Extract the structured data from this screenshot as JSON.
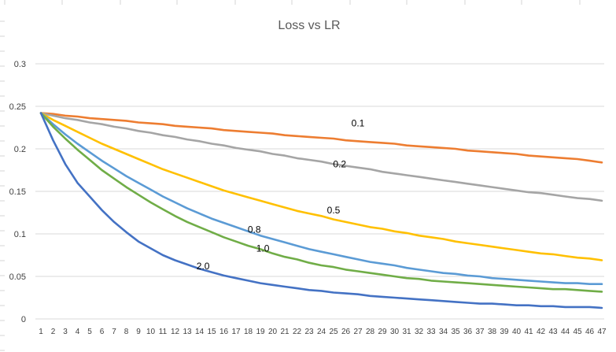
{
  "chart_data": {
    "type": "line",
    "title": "Loss vs LR",
    "xlabel": "",
    "ylabel": "",
    "ylim": [
      0,
      0.3
    ],
    "yticks": [
      "0",
      "0.05",
      "0.1",
      "0.15",
      "0.2",
      "0.25",
      "0.3"
    ],
    "grid": true,
    "legend": "none",
    "x": [
      1,
      2,
      3,
      4,
      5,
      6,
      7,
      8,
      9,
      10,
      11,
      12,
      13,
      14,
      15,
      16,
      17,
      18,
      19,
      20,
      21,
      22,
      23,
      24,
      25,
      26,
      27,
      28,
      29,
      30,
      31,
      32,
      33,
      34,
      35,
      36,
      37,
      38,
      39,
      40,
      41,
      42,
      43,
      44,
      45,
      46,
      47
    ],
    "series": [
      {
        "name": "0.1",
        "color": "#ED7D31",
        "values": [
          0.242,
          0.241,
          0.239,
          0.238,
          0.236,
          0.235,
          0.234,
          0.233,
          0.231,
          0.23,
          0.229,
          0.227,
          0.226,
          0.225,
          0.224,
          0.222,
          0.221,
          0.22,
          0.219,
          0.218,
          0.216,
          0.215,
          0.214,
          0.213,
          0.212,
          0.21,
          0.209,
          0.208,
          0.207,
          0.206,
          0.204,
          0.203,
          0.202,
          0.201,
          0.2,
          0.198,
          0.197,
          0.196,
          0.195,
          0.194,
          0.192,
          0.191,
          0.19,
          0.189,
          0.188,
          0.186,
          0.184
        ]
      },
      {
        "name": "0.2",
        "color": "#A5A5A5",
        "values": [
          0.242,
          0.239,
          0.236,
          0.234,
          0.231,
          0.229,
          0.226,
          0.224,
          0.221,
          0.219,
          0.216,
          0.214,
          0.211,
          0.209,
          0.206,
          0.204,
          0.201,
          0.199,
          0.197,
          0.194,
          0.192,
          0.189,
          0.187,
          0.185,
          0.182,
          0.18,
          0.178,
          0.176,
          0.173,
          0.171,
          0.169,
          0.167,
          0.165,
          0.163,
          0.161,
          0.159,
          0.157,
          0.155,
          0.153,
          0.151,
          0.149,
          0.148,
          0.146,
          0.144,
          0.142,
          0.141,
          0.139
        ]
      },
      {
        "name": "0.5",
        "color": "#FFC000",
        "values": [
          0.242,
          0.234,
          0.227,
          0.22,
          0.213,
          0.206,
          0.2,
          0.194,
          0.188,
          0.182,
          0.176,
          0.171,
          0.166,
          0.161,
          0.156,
          0.151,
          0.147,
          0.143,
          0.139,
          0.135,
          0.131,
          0.127,
          0.124,
          0.121,
          0.117,
          0.114,
          0.111,
          0.108,
          0.106,
          0.103,
          0.101,
          0.098,
          0.096,
          0.094,
          0.091,
          0.089,
          0.087,
          0.085,
          0.083,
          0.081,
          0.079,
          0.077,
          0.076,
          0.074,
          0.072,
          0.071,
          0.069
        ]
      },
      {
        "name": "0.8",
        "color": "#5B9BD5",
        "values": [
          0.242,
          0.229,
          0.217,
          0.206,
          0.196,
          0.186,
          0.177,
          0.168,
          0.16,
          0.152,
          0.144,
          0.137,
          0.13,
          0.124,
          0.118,
          0.113,
          0.108,
          0.103,
          0.098,
          0.094,
          0.09,
          0.086,
          0.082,
          0.079,
          0.076,
          0.073,
          0.07,
          0.067,
          0.065,
          0.063,
          0.06,
          0.058,
          0.056,
          0.054,
          0.053,
          0.051,
          0.05,
          0.048,
          0.047,
          0.046,
          0.045,
          0.044,
          0.043,
          0.042,
          0.042,
          0.041,
          0.041
        ]
      },
      {
        "name": "1.0",
        "color": "#70AD47",
        "values": [
          0.242,
          0.226,
          0.212,
          0.199,
          0.187,
          0.175,
          0.165,
          0.155,
          0.146,
          0.137,
          0.129,
          0.121,
          0.114,
          0.108,
          0.102,
          0.096,
          0.091,
          0.086,
          0.082,
          0.077,
          0.073,
          0.07,
          0.066,
          0.063,
          0.061,
          0.058,
          0.056,
          0.054,
          0.052,
          0.05,
          0.048,
          0.047,
          0.045,
          0.044,
          0.043,
          0.042,
          0.041,
          0.04,
          0.039,
          0.038,
          0.037,
          0.036,
          0.035,
          0.035,
          0.034,
          0.033,
          0.032
        ]
      },
      {
        "name": "2.0",
        "color": "#4472C4",
        "values": [
          0.242,
          0.21,
          0.182,
          0.16,
          0.144,
          0.128,
          0.114,
          0.102,
          0.091,
          0.083,
          0.075,
          0.069,
          0.064,
          0.059,
          0.055,
          0.051,
          0.048,
          0.045,
          0.042,
          0.04,
          0.038,
          0.036,
          0.034,
          0.033,
          0.031,
          0.03,
          0.029,
          0.027,
          0.026,
          0.025,
          0.024,
          0.023,
          0.022,
          0.021,
          0.02,
          0.019,
          0.018,
          0.018,
          0.017,
          0.016,
          0.016,
          0.015,
          0.015,
          0.014,
          0.014,
          0.014,
          0.013
        ]
      }
    ],
    "data_labels": [
      {
        "series": "0.1",
        "text": "0.1",
        "x": 27,
        "y": 0.23
      },
      {
        "series": "0.2",
        "text": "0.2",
        "x": 25.5,
        "y": 0.182
      },
      {
        "series": "0.5",
        "text": "0.5",
        "x": 25,
        "y": 0.128
      },
      {
        "series": "0.8",
        "text": "0.8",
        "x": 18.5,
        "y": 0.105
      },
      {
        "series": "1.0",
        "text": "1.0",
        "x": 19.2,
        "y": 0.083
      },
      {
        "series": "2.0",
        "text": "2.0",
        "x": 14.3,
        "y": 0.062
      }
    ]
  }
}
